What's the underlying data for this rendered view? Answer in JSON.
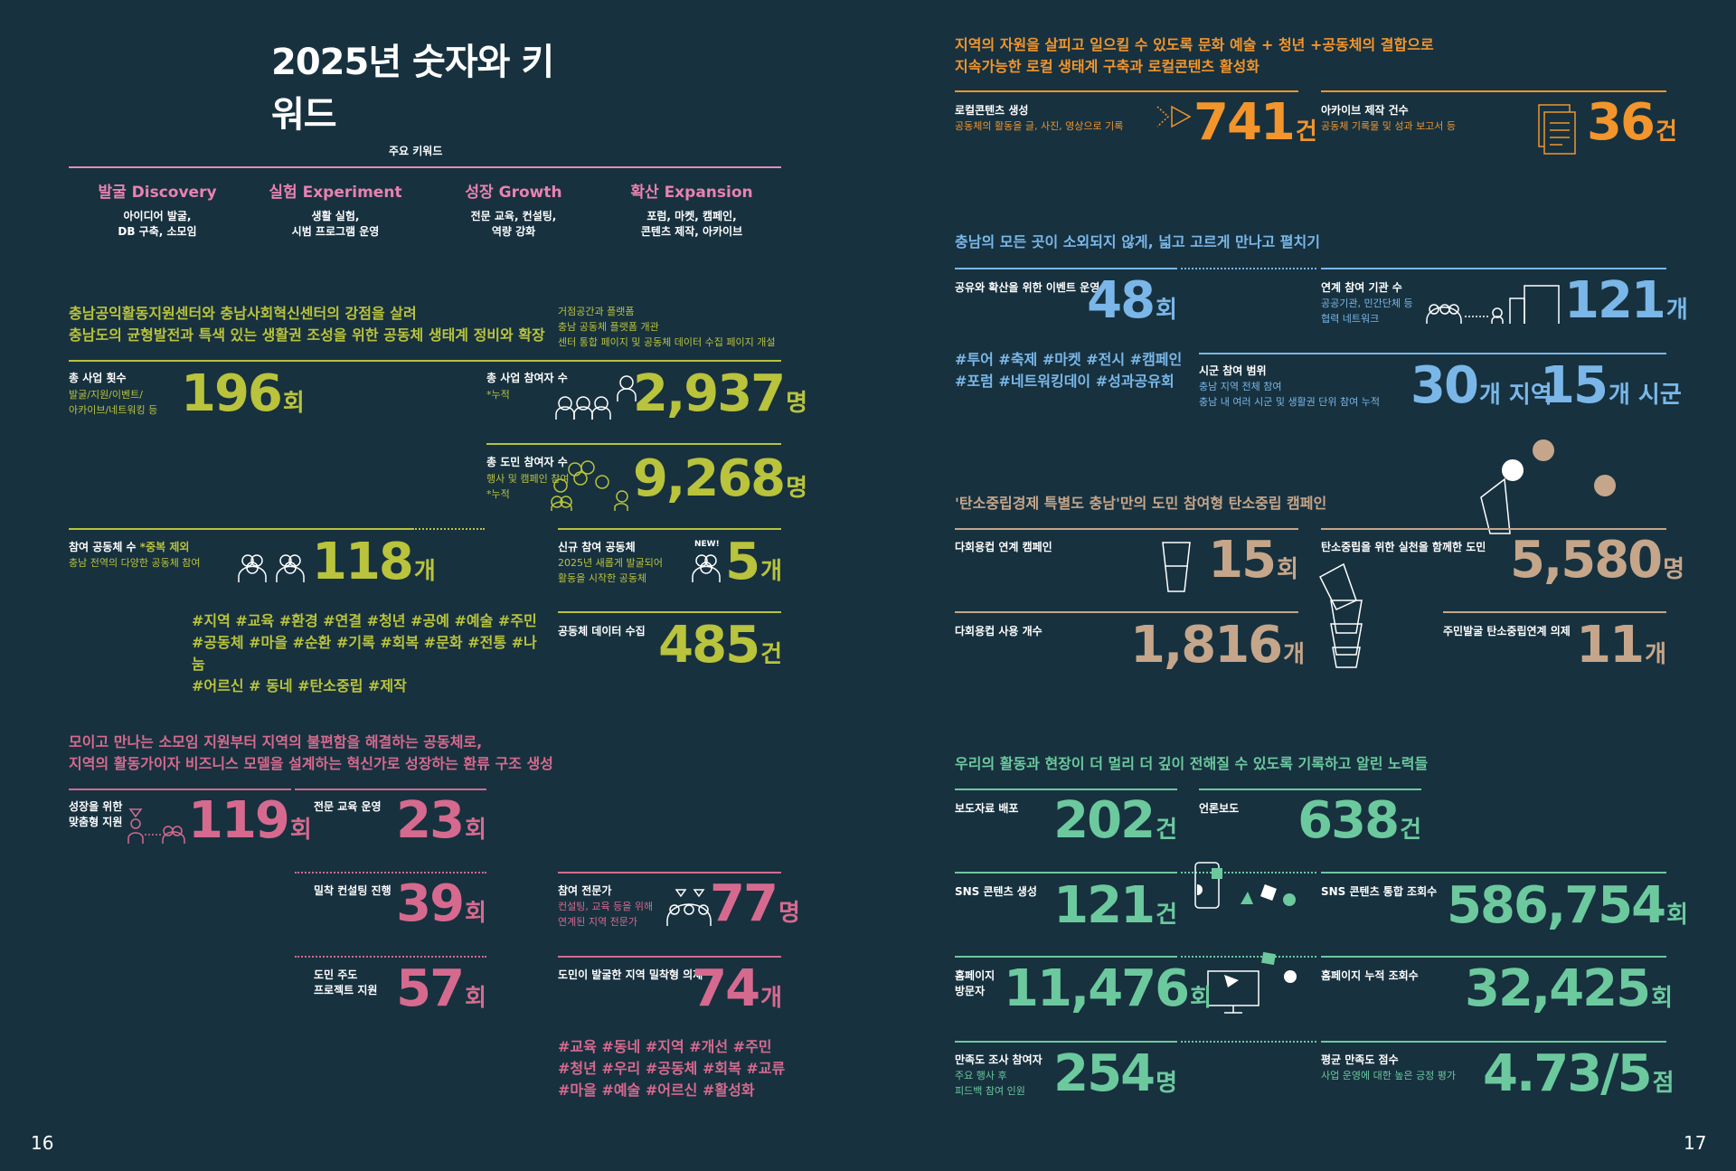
{
  "left": {
    "title": "2025년 숫자와 키워드",
    "keywords_label": "주요 키워드",
    "keywords": [
      {
        "title": "발굴 Discovery",
        "desc1": "아이디어 발굴,",
        "desc2": "DB 구축, 소모임"
      },
      {
        "title": "실험 Experiment",
        "desc1": "생활 실험,",
        "desc2": "시범 프로그램 운영"
      },
      {
        "title": "성장 Growth",
        "desc1": "전문 교육, 컨설팅,",
        "desc2": "역량 강화"
      },
      {
        "title": "확산 Expansion",
        "desc1": "포럼, 마켓, 캠페인,",
        "desc2": "콘텐츠 제작, 아카이브"
      }
    ],
    "section1": {
      "heading1": "충남공익활동지원센터와 충남사회혁신센터의 강점을 살려",
      "heading2": "충남도의 균형발전과 특색 있는 생활권 조성을 위한 공동체 생태계 정비와 확장",
      "note1": "거점공간과 플랫폼",
      "note2": "충남 공동체 플랫폼 개관",
      "note3": "센터 통합 페이지 및 공동체 데이터 수집 페이지 개설",
      "total_projects": {
        "label": "총 사업 횟수",
        "sub1": "발굴/지원/이벤트/",
        "sub2": "아카이브/네트워킹 등",
        "value": "196",
        "unit": "회"
      },
      "participants": {
        "label": "총 사업 참여자 수",
        "sub": "*누적",
        "value": "2,937",
        "unit": "명"
      },
      "citizens": {
        "label": "총 도민 참여자 수",
        "sub1": "행사 및 캠페인 참여",
        "sub2": "*누적",
        "value": "9,268",
        "unit": "명"
      },
      "communities": {
        "label": "참여 공동체 수",
        "label_note": "*중복 제외",
        "sub": "충남 전역의 다양한 공동체 참여",
        "value": "118",
        "unit": "개"
      },
      "new_communities": {
        "label": "신규 참여 공동체",
        "badge": "NEW!",
        "sub1": "2025년 새롭게 발굴되어",
        "sub2": "활동을 시작한 공동체",
        "value": "5",
        "unit": "개"
      },
      "data": {
        "label": "공동체 데이터 수집",
        "value": "485",
        "unit": "건"
      },
      "tags1": "#지역 #교육 #환경 #연결 #청년 #공예 #예술 #주민",
      "tags2": "#공동체 #마을 #순환 #기록 #회복 #문화 #전통 #나눔",
      "tags3": "#어르신 # 동네 #탄소중립 #제작"
    },
    "section2": {
      "heading1": "모이고 만나는 소모임 지원부터 지역의 불편함을 해결하는 공동체로,",
      "heading2": "지역의 활동가이자 비즈니스 모델을 설계하는 혁신가로 성장하는 환류 구조 생성",
      "growth": {
        "label1": "성장을 위한",
        "label2": "맞춤형 지원",
        "value": "119",
        "unit": "회"
      },
      "education": {
        "label": "전문 교육 운영",
        "value": "23",
        "unit": "회"
      },
      "consulting": {
        "label": "밀착 컨설팅 진행",
        "value": "39",
        "unit": "회"
      },
      "experts": {
        "label": "참여 전문가",
        "sub1": "컨설팅, 교육 등을 위해",
        "sub2": "연계된 지역 전문가",
        "value": "77",
        "unit": "명"
      },
      "projects": {
        "label1": "도민 주도",
        "label2": "프로젝트 지원",
        "value": "57",
        "unit": "회"
      },
      "agenda": {
        "label": "도민이 발굴한 지역 밀착형 의제",
        "value": "74",
        "unit": "개"
      },
      "tags1": "#교육 #동네 #지역 #개선 #주민",
      "tags2": "#청년 #우리 #공동체 #회복 #교류",
      "tags3": "#마을 #예술 #어르신 #활성화"
    },
    "page": "16"
  },
  "right": {
    "s1": {
      "heading1": "지역의 자원을 살피고 일으킬 수 있도록 문화 예술 + 청년 +공동체의 결합으로",
      "heading2": "지속가능한 로컬 생태계 구축과 로컬콘텐츠 활성화",
      "local": {
        "label": "로컬콘텐츠 생성",
        "sub": "공동체의 활동을 글, 사진, 영상으로 기록",
        "value": "741",
        "unit": "건"
      },
      "archive": {
        "label": "아카이브 제작 건수",
        "sub": "공동체 기록물 및 성과 보고서 등",
        "value": "36",
        "unit": "건"
      }
    },
    "s2": {
      "heading": "충남의 모든 곳이 소외되지 않게, 넓고 고르게 만나고 펼치기",
      "events": {
        "label": "공유와 확산을 위한 이벤트 운영",
        "value": "48",
        "unit": "회"
      },
      "orgs": {
        "label": "연계 참여 기관 수",
        "sub1": "공공기관, 민간단체 등",
        "sub2": "협력 네트워크",
        "value": "121",
        "unit": "개"
      },
      "tags1": "#투어 #축제 #마켓 #전시 #캠페인",
      "tags2": "#포럼 #네트워킹데이 #성과공유회",
      "range": {
        "label": "시군 참여 범위",
        "sub1": "충남 지역 전체 참여",
        "sub2": "충남 내 여러 시군 및 생활권 단위 참여 누적",
        "value1": "30",
        "unit1": "개 지역",
        "value2": "15",
        "unit2": "개 시군"
      }
    },
    "s3": {
      "heading": "'탄소중립경제 특별도 충남'만의 도민 참여형 탄소중립 캠페인",
      "cup_campaign": {
        "label": "다회용컵 연계 캠페인",
        "value": "15",
        "unit": "회"
      },
      "carbon_citizens": {
        "label": "탄소중립을 위한 실천을 함께한 도민",
        "value": "5,580",
        "unit": "명"
      },
      "cup_count": {
        "label": "다회용컵 사용 개수",
        "value": "1,816",
        "unit": "개"
      },
      "agenda": {
        "label": "주민발굴 탄소중립연계 의제",
        "value": "11",
        "unit": "개"
      }
    },
    "s4": {
      "heading": "우리의 활동과 현장이 더 멀리 더 깊이 전해질 수 있도록 기록하고 알린 노력들",
      "press": {
        "label": "보도자료 배포",
        "value": "202",
        "unit": "건"
      },
      "media": {
        "label": "언론보도",
        "value": "638",
        "unit": "건"
      },
      "sns": {
        "label": "SNS 콘텐츠 생성",
        "value": "121",
        "unit": "건"
      },
      "sns_views": {
        "label": "SNS 콘텐츠 통합 조회수",
        "value": "586,754",
        "unit": "회"
      },
      "visitors": {
        "label1": "홈페이지",
        "label2": "방문자",
        "value": "11,476",
        "unit": "회"
      },
      "home_views": {
        "label": "홈페이지 누적 조회수",
        "value": "32,425",
        "unit": "회"
      },
      "survey": {
        "label": "만족도 조사 참여자",
        "sub1": "주요 행사 후",
        "sub2": "피드백 참여 인원",
        "value": "254",
        "unit": "명"
      },
      "score": {
        "label": "평균 만족도 점수",
        "sub": "사업 운영에 대한 높은 긍정 평가",
        "value": "4.73/5",
        "unit": "점"
      }
    },
    "page": "17"
  }
}
